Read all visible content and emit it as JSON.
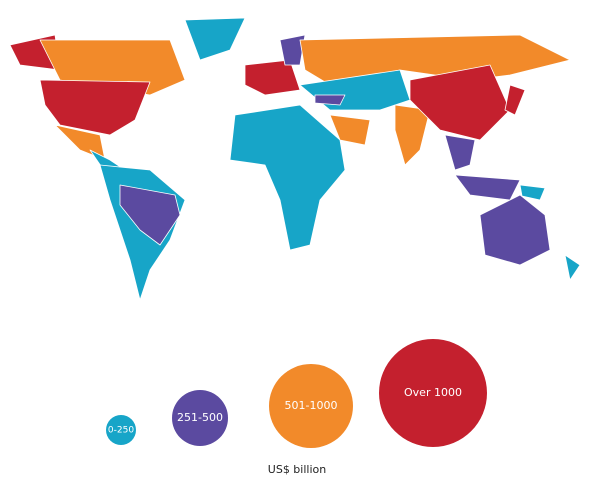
{
  "legend": {
    "items": [
      {
        "label": "0-250",
        "color": "#17a5c8"
      },
      {
        "label": "251-500",
        "color": "#5b4aa0"
      },
      {
        "label": "501-1000",
        "color": "#f28a2a"
      },
      {
        "label": "Over 1000",
        "color": "#c4202e"
      }
    ],
    "unit": "US$ billion"
  }
}
